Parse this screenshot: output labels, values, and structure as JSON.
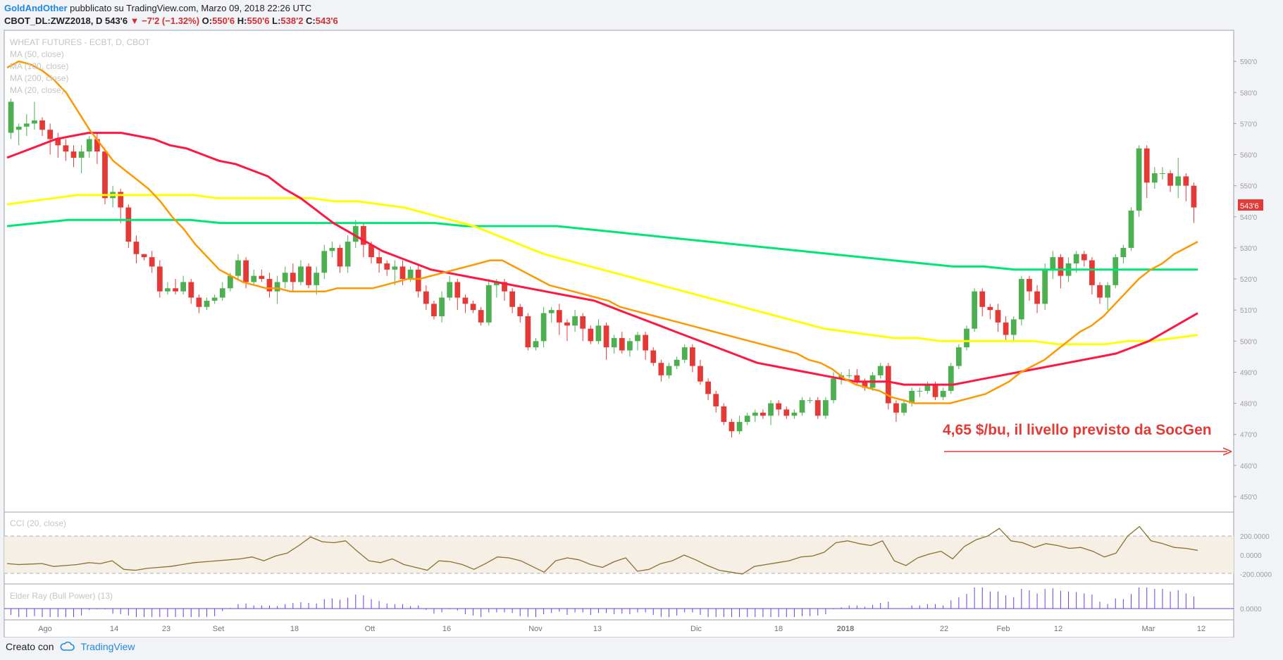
{
  "header": {
    "author": "GoldAndOther",
    "published_text": "pubblicato su TradingView.com, Marzo 09, 2018 22:26 UTC",
    "symbol": "CBOT_DL:ZWZ2018, D",
    "last": "543'6",
    "change": "−7'2 (−1.32%)",
    "o_label": "O:",
    "o_value": "550'6",
    "h_label": "H:",
    "h_value": "550'6",
    "l_label": "L:",
    "l_value": "538'2",
    "c_label": "C:",
    "c_value": "543'6"
  },
  "legend": {
    "title": "WHEAT FUTURES - ECBT, D, CBOT",
    "ma50": "MA (50, close)",
    "ma100": "MA (100, close)",
    "ma200": "MA (200, close)",
    "ma20": "MA (20, close)"
  },
  "annotation": "4,65 $/bu, il livello previsto da SocGen",
  "last_price_label": "543'6",
  "cci_label": "CCI (20, close)",
  "elder_label": "Elder Ray (Bull Power) (13)",
  "footer": {
    "created_with": "Creato con",
    "brand": "TradingView"
  },
  "colors": {
    "up": "#4caf50",
    "down": "#e53935",
    "ma50": "#ff1744",
    "ma100": "#ffff00",
    "ma200": "#00e676",
    "ma20": "#ff9800",
    "cci": "#8b6f2e",
    "bull_power": "#6a3de8",
    "annotation": "#e53935"
  },
  "chart_data": {
    "type": "candlestick",
    "price_axis_ticks": [
      "590'0",
      "580'0",
      "570'0",
      "560'0",
      "550'0",
      "540'0",
      "530'0",
      "520'0",
      "510'0",
      "500'0",
      "490'0",
      "480'0",
      "470'0",
      "460'0",
      "450'0"
    ],
    "price_range": [
      445,
      600
    ],
    "x_tick_labels": [
      "Ago",
      "14",
      "23",
      "Set",
      "18",
      "Ott",
      "16",
      "Nov",
      "13",
      "Dic",
      "18",
      "2018",
      "22",
      "Feb",
      "12",
      "Mar",
      "12"
    ],
    "candles": [
      [
        567,
        577,
        565,
        578
      ],
      [
        568,
        569,
        563,
        570
      ],
      [
        569,
        570,
        566,
        573
      ],
      [
        570,
        571,
        568,
        577
      ],
      [
        571,
        568,
        566,
        572
      ],
      [
        568,
        565,
        560,
        570
      ],
      [
        565,
        563,
        559,
        567
      ],
      [
        563,
        561,
        558,
        565
      ],
      [
        561,
        559,
        556,
        563
      ],
      [
        559,
        561,
        554,
        563
      ],
      [
        561,
        565,
        559,
        566
      ],
      [
        565,
        561,
        557,
        567
      ],
      [
        561,
        546,
        544,
        562
      ],
      [
        546,
        548,
        543,
        550
      ],
      [
        548,
        543,
        538,
        549
      ],
      [
        543,
        532,
        530,
        544
      ],
      [
        532,
        528,
        525,
        534
      ],
      [
        528,
        527,
        526,
        528
      ],
      [
        527,
        524,
        522,
        529
      ],
      [
        524,
        516,
        514,
        526
      ],
      [
        516,
        517,
        515,
        519
      ],
      [
        517,
        516,
        515,
        520
      ],
      [
        516,
        519,
        515,
        521
      ],
      [
        519,
        514,
        512,
        520
      ],
      [
        514,
        511,
        509,
        515
      ],
      [
        511,
        513,
        510,
        514
      ],
      [
        513,
        514,
        512,
        515
      ],
      [
        514,
        517,
        513,
        519
      ],
      [
        517,
        521,
        516,
        522
      ],
      [
        521,
        526,
        520,
        528
      ],
      [
        526,
        519,
        517,
        527
      ],
      [
        519,
        521,
        518,
        523
      ],
      [
        521,
        520,
        519,
        523
      ],
      [
        520,
        516,
        514,
        522
      ],
      [
        516,
        519,
        512,
        521
      ],
      [
        519,
        522,
        517,
        524
      ],
      [
        522,
        519,
        516,
        525
      ],
      [
        519,
        524,
        518,
        526
      ],
      [
        524,
        518,
        517,
        525
      ],
      [
        518,
        522,
        515,
        524
      ],
      [
        522,
        529,
        520,
        531
      ],
      [
        529,
        530,
        527,
        532
      ],
      [
        530,
        524,
        522,
        531
      ],
      [
        524,
        532,
        522,
        534
      ],
      [
        532,
        537,
        530,
        539
      ],
      [
        537,
        531,
        527,
        538
      ],
      [
        531,
        527,
        525,
        532
      ],
      [
        527,
        525,
        522,
        529
      ],
      [
        525,
        523,
        521,
        526
      ],
      [
        523,
        524,
        518,
        526
      ],
      [
        524,
        520,
        518,
        526
      ],
      [
        520,
        523,
        519,
        524
      ],
      [
        523,
        516,
        514,
        525
      ],
      [
        516,
        512,
        510,
        518
      ],
      [
        512,
        508,
        507,
        513
      ],
      [
        508,
        514,
        506,
        516
      ],
      [
        514,
        519,
        513,
        521
      ],
      [
        519,
        514,
        510,
        520
      ],
      [
        514,
        512,
        509,
        515
      ],
      [
        512,
        510,
        509,
        513
      ],
      [
        510,
        506,
        505,
        511
      ],
      [
        506,
        518,
        505,
        520
      ],
      [
        518,
        519,
        514,
        520
      ],
      [
        519,
        516,
        513,
        520
      ],
      [
        516,
        511,
        509,
        517
      ],
      [
        511,
        508,
        506,
        512
      ],
      [
        508,
        498,
        497,
        509
      ],
      [
        498,
        500,
        497,
        501
      ],
      [
        500,
        509,
        498,
        511
      ],
      [
        509,
        510,
        506,
        511
      ],
      [
        510,
        506,
        502,
        512
      ],
      [
        506,
        505,
        500,
        507
      ],
      [
        505,
        508,
        503,
        510
      ],
      [
        508,
        504,
        500,
        509
      ],
      [
        504,
        500,
        499,
        505
      ],
      [
        500,
        505,
        499,
        507
      ],
      [
        505,
        498,
        494,
        506
      ],
      [
        498,
        501,
        496,
        502
      ],
      [
        501,
        497,
        496,
        503
      ],
      [
        497,
        500,
        495,
        501
      ],
      [
        500,
        502,
        497,
        503
      ],
      [
        502,
        497,
        494,
        503
      ],
      [
        497,
        493,
        492,
        498
      ],
      [
        493,
        489,
        487,
        494
      ],
      [
        489,
        492,
        488,
        493
      ],
      [
        492,
        494,
        491,
        495
      ],
      [
        494,
        498,
        493,
        499
      ],
      [
        498,
        492,
        490,
        499
      ],
      [
        492,
        487,
        486,
        494
      ],
      [
        487,
        483,
        481,
        488
      ],
      [
        483,
        479,
        477,
        484
      ],
      [
        479,
        474,
        473,
        480
      ],
      [
        474,
        471,
        469,
        475
      ],
      [
        471,
        474,
        470,
        476
      ],
      [
        474,
        476,
        473,
        477
      ],
      [
        476,
        477,
        474,
        478
      ],
      [
        477,
        476,
        475,
        478
      ],
      [
        476,
        480,
        473,
        481
      ],
      [
        480,
        478,
        476,
        481
      ],
      [
        478,
        476,
        475,
        479
      ],
      [
        476,
        477,
        475,
        478
      ],
      [
        477,
        481,
        476,
        482
      ],
      [
        481,
        481,
        480,
        482
      ],
      [
        481,
        476,
        475,
        482
      ],
      [
        476,
        481,
        475,
        482
      ],
      [
        481,
        488,
        480,
        490
      ],
      [
        488,
        489,
        486,
        490
      ],
      [
        489,
        489,
        488,
        491
      ],
      [
        489,
        487,
        486,
        491
      ],
      [
        487,
        485,
        484,
        488
      ],
      [
        485,
        489,
        484,
        490
      ],
      [
        489,
        492,
        488,
        493
      ],
      [
        492,
        480,
        478,
        493
      ],
      [
        480,
        477,
        474,
        481
      ],
      [
        477,
        480,
        476,
        481
      ],
      [
        480,
        484,
        479,
        485
      ],
      [
        484,
        484,
        482,
        485
      ],
      [
        484,
        486,
        483,
        487
      ],
      [
        486,
        482,
        481,
        487
      ],
      [
        482,
        484,
        481,
        485
      ],
      [
        484,
        492,
        483,
        493
      ],
      [
        492,
        498,
        491,
        499
      ],
      [
        498,
        504,
        497,
        505
      ],
      [
        504,
        516,
        503,
        517
      ],
      [
        516,
        511,
        508,
        517
      ],
      [
        511,
        510,
        507,
        512
      ],
      [
        510,
        506,
        503,
        512
      ],
      [
        506,
        502,
        500,
        508
      ],
      [
        502,
        507,
        500,
        508
      ],
      [
        507,
        520,
        505,
        521
      ],
      [
        520,
        516,
        513,
        521
      ],
      [
        516,
        512,
        509,
        518
      ],
      [
        512,
        523,
        510,
        525
      ],
      [
        523,
        527,
        520,
        529
      ],
      [
        527,
        521,
        517,
        528
      ],
      [
        521,
        525,
        519,
        527
      ],
      [
        525,
        528,
        522,
        529
      ],
      [
        528,
        526,
        524,
        529
      ],
      [
        526,
        518,
        515,
        527
      ],
      [
        518,
        514,
        512,
        519
      ],
      [
        514,
        518,
        510,
        519
      ],
      [
        518,
        527,
        517,
        528
      ],
      [
        527,
        530,
        525,
        531
      ],
      [
        530,
        542,
        529,
        543
      ],
      [
        542,
        562,
        540,
        563
      ],
      [
        562,
        551,
        546,
        563
      ],
      [
        551,
        554,
        549,
        556
      ],
      [
        554,
        554,
        552,
        556
      ],
      [
        554,
        550,
        548,
        555
      ],
      [
        550,
        553,
        546,
        559
      ],
      [
        553,
        550,
        545,
        554
      ],
      [
        550,
        543,
        538,
        551
      ]
    ],
    "ma20": [
      588,
      590,
      589,
      587,
      584,
      580,
      574,
      568,
      563,
      558,
      555,
      552,
      549,
      545,
      540,
      536,
      531,
      527,
      523,
      521,
      519,
      518,
      517,
      517,
      516,
      516,
      516,
      516,
      517,
      517,
      517,
      517,
      518,
      519,
      520,
      520,
      521,
      522,
      523,
      524,
      525,
      526,
      526,
      524,
      522,
      520,
      518,
      517,
      516,
      515,
      514,
      513,
      511,
      510,
      509,
      508,
      507,
      506,
      505,
      504,
      503,
      502,
      501,
      500,
      499,
      498,
      497,
      496,
      494,
      493,
      491,
      488,
      486,
      485,
      484,
      482,
      481,
      480,
      480,
      480,
      480,
      481,
      482,
      483,
      485,
      487,
      490,
      492,
      494,
      497,
      500,
      503,
      505,
      508,
      512,
      516,
      520,
      523,
      525,
      528,
      530,
      532
    ],
    "ma50": [
      559,
      561,
      563,
      565,
      566,
      567,
      567,
      567,
      566,
      565,
      563,
      562,
      560,
      558,
      557,
      555,
      553,
      549,
      546,
      542,
      538,
      535,
      532,
      529,
      527,
      525,
      523,
      522,
      521,
      520,
      519,
      518,
      517,
      516,
      515,
      514,
      513,
      511,
      509,
      507,
      505,
      503,
      501,
      499,
      497,
      495,
      493,
      492,
      491,
      490,
      489,
      488,
      487,
      487,
      487,
      486,
      486,
      486,
      486,
      487,
      488,
      489,
      490,
      491,
      492,
      493,
      494,
      495,
      496,
      498,
      500,
      503,
      506,
      509
    ],
    "ma100": [
      544,
      545,
      546,
      547,
      547,
      547,
      547,
      547,
      547,
      546,
      546,
      546,
      546,
      546,
      545,
      545,
      544,
      543,
      541,
      539,
      537,
      534,
      531,
      528,
      526,
      524,
      522,
      520,
      518,
      516,
      514,
      512,
      510,
      508,
      506,
      504,
      503,
      502,
      501,
      501,
      500,
      500,
      500,
      500,
      500,
      499,
      499,
      499,
      500,
      500,
      501,
      502
    ],
    "ma200": [
      537,
      538,
      539,
      539,
      539,
      539,
      539,
      538,
      538,
      538,
      538,
      538,
      538,
      538,
      538,
      537,
      537,
      537,
      537,
      536,
      535,
      534,
      533,
      532,
      531,
      530,
      529,
      528,
      527,
      526,
      525,
      524,
      524,
      523,
      523,
      523,
      523,
      523,
      523,
      523
    ],
    "cci_ticks": [
      "200.0000",
      "0.0000",
      "-200.0000"
    ],
    "cci": [
      -90,
      -100,
      -95,
      -90,
      -120,
      -110,
      -100,
      -80,
      -90,
      -60,
      -150,
      -160,
      -140,
      -130,
      -120,
      -100,
      -80,
      -70,
      -60,
      -50,
      -40,
      -20,
      -60,
      -10,
      20,
      100,
      190,
      140,
      130,
      150,
      40,
      -60,
      -80,
      -40,
      -100,
      -130,
      -160,
      -60,
      -70,
      -100,
      -150,
      -90,
      -20,
      -30,
      -60,
      -120,
      -180,
      -60,
      -30,
      -50,
      -100,
      -130,
      -70,
      -30,
      -170,
      -150,
      -90,
      -60,
      0,
      -50,
      -110,
      -160,
      -180,
      -200,
      -120,
      -100,
      -80,
      -60,
      -20,
      -10,
      30,
      130,
      150,
      120,
      100,
      150,
      -60,
      -110,
      -30,
      10,
      40,
      -40,
      90,
      160,
      200,
      280,
      150,
      130,
      80,
      120,
      100,
      70,
      80,
      40,
      -20,
      20,
      200,
      300,
      150,
      120,
      80,
      70,
      50
    ]
  }
}
